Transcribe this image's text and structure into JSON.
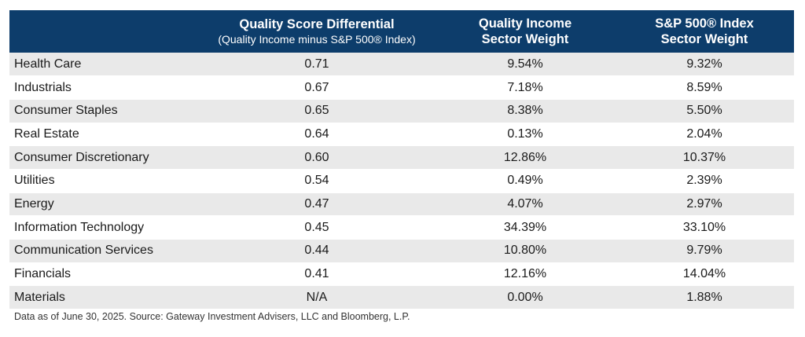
{
  "header": {
    "col_sector": "",
    "col_differential_title": "Quality Score Differential",
    "col_differential_sub": "(Quality Income minus S&P 500® Index)",
    "col_qi_line1": "Quality Income",
    "col_qi_line2": "Sector Weight",
    "col_sp_line1": "S&P 500® Index",
    "col_sp_line2": "Sector Weight"
  },
  "rows": [
    {
      "sector": "Health Care",
      "differential": "0.71",
      "qi_weight": "9.54%",
      "sp_weight": "9.32%"
    },
    {
      "sector": "Industrials",
      "differential": "0.67",
      "qi_weight": "7.18%",
      "sp_weight": "8.59%"
    },
    {
      "sector": "Consumer Staples",
      "differential": "0.65",
      "qi_weight": "8.38%",
      "sp_weight": "5.50%"
    },
    {
      "sector": "Real Estate",
      "differential": "0.64",
      "qi_weight": "0.13%",
      "sp_weight": "2.04%"
    },
    {
      "sector": "Consumer Discretionary",
      "differential": "0.60",
      "qi_weight": "12.86%",
      "sp_weight": "10.37%"
    },
    {
      "sector": "Utilities",
      "differential": "0.54",
      "qi_weight": "0.49%",
      "sp_weight": "2.39%"
    },
    {
      "sector": "Energy",
      "differential": "0.47",
      "qi_weight": "4.07%",
      "sp_weight": "2.97%"
    },
    {
      "sector": "Information Technology",
      "differential": "0.45",
      "qi_weight": "34.39%",
      "sp_weight": "33.10%"
    },
    {
      "sector": "Communication Services",
      "differential": "0.44",
      "qi_weight": "10.80%",
      "sp_weight": "9.79%"
    },
    {
      "sector": "Financials",
      "differential": "0.41",
      "qi_weight": "12.16%",
      "sp_weight": "14.04%"
    },
    {
      "sector": "Materials",
      "differential": "N/A",
      "qi_weight": "0.00%",
      "sp_weight": "1.88%"
    }
  ],
  "footnote": "Data as of June 30, 2025. Source: Gateway Investment Advisers, LLC and Bloomberg, L.P.",
  "colors": {
    "header_bg": "#0d3d6b",
    "header_text": "#ffffff",
    "stripe": "#e9e9e9"
  }
}
